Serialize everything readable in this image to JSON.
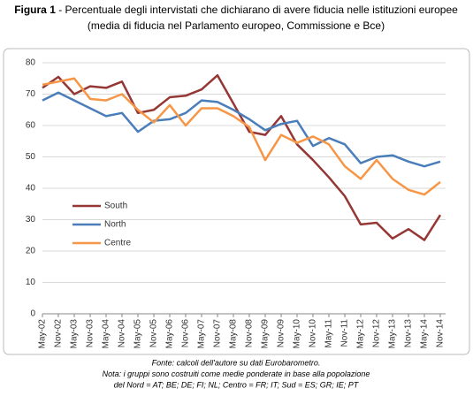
{
  "chart_data": {
    "type": "line",
    "title_prefix": "Figura 1",
    "title": "- Percentuale degli intervistati che dichiarano di avere fiducia nelle istituzioni europee",
    "subtitle": "(media di fiducia nel Parlamento europeo, Commissione e Bce)",
    "categories": [
      "May-02",
      "Nov-02",
      "May-03",
      "Nov-03",
      "May-04",
      "Nov-04",
      "May-05",
      "Nov-05",
      "May-06",
      "Nov-06",
      "May-07",
      "Nov-07",
      "May-08",
      "Nov-08",
      "May-09",
      "Nov-09",
      "May-10",
      "Nov-10",
      "May-11",
      "Nov-11",
      "May-12",
      "Nov-12",
      "May-13",
      "Nov-13",
      "May-14",
      "Nov-14"
    ],
    "series": [
      {
        "name": "South",
        "color": "#953735",
        "values": [
          72,
          75.5,
          70,
          72.5,
          72,
          74,
          64,
          65,
          69,
          69.5,
          71.5,
          76,
          67,
          58,
          57,
          63,
          54,
          49,
          43.5,
          37.5,
          28.5,
          29,
          24,
          27,
          23.5,
          31.5
        ]
      },
      {
        "name": "North",
        "color": "#4a7ebb",
        "values": [
          68,
          70.5,
          68,
          65.5,
          63,
          64,
          58,
          61.5,
          62,
          64,
          68,
          67.5,
          65,
          62,
          58.5,
          60.5,
          61.5,
          53.5,
          56,
          54,
          48,
          50,
          50.5,
          48.5,
          47,
          48.5
        ]
      },
      {
        "name": "Centre",
        "color": "#f79646",
        "values": [
          73,
          74,
          75,
          68.5,
          68,
          70,
          65,
          61,
          66.5,
          60,
          65.5,
          65.5,
          63,
          59.5,
          49,
          57,
          54.5,
          56.5,
          54,
          47,
          43,
          49,
          43,
          39.5,
          38,
          42
        ]
      }
    ],
    "ylim": [
      0,
      80
    ],
    "yticks": [
      0,
      10,
      20,
      30,
      40,
      50,
      60,
      70,
      80
    ],
    "grid": true,
    "legend_position": "left",
    "notes": [
      "Fonte: calcoli dell'autore su dati Eurobarometro.",
      "Nota: i gruppi sono costruiti come medie ponderate in base alla popolazione",
      "del Nord = AT; BE; DE; FI; NL; Centro = FR; IT; Sud = ES; GR; IE; PT"
    ]
  }
}
